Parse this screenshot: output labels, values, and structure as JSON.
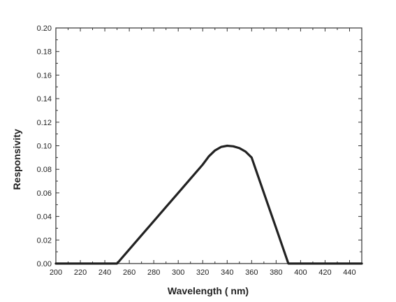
{
  "chart_data": {
    "type": "line",
    "title": "",
    "xlabel": "Wavelength ( nm)",
    "ylabel": "Responsivity",
    "xlim": [
      200,
      450
    ],
    "ylim": [
      0,
      0.2
    ],
    "grid": false,
    "legend": "none",
    "x_ticks": [
      "200",
      "220",
      "240",
      "260",
      "280",
      "300",
      "320",
      "340",
      "360",
      "380",
      "400",
      "420",
      "440"
    ],
    "y_ticks": [
      "0.00",
      "0.02",
      "0.04",
      "0.06",
      "0.08",
      "0.10",
      "0.12",
      "0.14",
      "0.16",
      "0.18",
      "0.20"
    ],
    "series": [
      {
        "color": "#222222",
        "x": [
          200,
          250,
          260,
          270,
          280,
          290,
          300,
          310,
          320,
          325,
          330,
          335,
          340,
          345,
          350,
          355,
          360,
          370,
          380,
          390,
          400,
          450
        ],
        "y": [
          0.0,
          0.0,
          0.012,
          0.024,
          0.036,
          0.048,
          0.06,
          0.072,
          0.084,
          0.091,
          0.096,
          0.099,
          0.1,
          0.0995,
          0.098,
          0.095,
          0.09,
          0.06,
          0.03,
          0.0,
          0.0,
          0.0
        ]
      }
    ]
  }
}
